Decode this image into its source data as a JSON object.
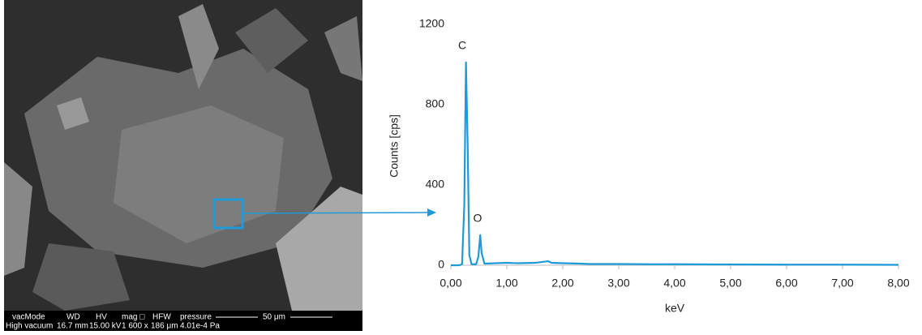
{
  "sem_image": {
    "info_header": [
      "vacMode",
      "WD",
      "HV",
      "mag □",
      "HFW",
      "pressure",
      "50 μm"
    ],
    "info_values": [
      "High vacuum",
      "16.7 mm",
      "15.00 kV",
      "1 600 x",
      "186 μm",
      "4.01e-4 Pa"
    ]
  },
  "chart_data": {
    "type": "line",
    "x": [
      0.0,
      0.15,
      0.2,
      0.24,
      0.27,
      0.3,
      0.33,
      0.37,
      0.45,
      0.49,
      0.525,
      0.55,
      0.6,
      0.8,
      1.0,
      1.2,
      1.5,
      1.74,
      1.8,
      2.0,
      2.3,
      2.5,
      3.0,
      3.5,
      4.0,
      5.0,
      6.0,
      7.0,
      8.0
    ],
    "values": [
      0,
      0,
      5,
      300,
      1010,
      600,
      50,
      5,
      5,
      40,
      150,
      60,
      8,
      10,
      12,
      10,
      12,
      20,
      12,
      10,
      8,
      6,
      6,
      5,
      5,
      4,
      3,
      3,
      2
    ],
    "color": "#1e9ad6",
    "xlabel": "keV",
    "ylabel": "Counts [cps]",
    "xlim": [
      0,
      8
    ],
    "ylim": [
      0,
      1200
    ],
    "xticks": [
      {
        "value": 0,
        "label": "0,00"
      },
      {
        "value": 1,
        "label": "1,00"
      },
      {
        "value": 2,
        "label": "2,00"
      },
      {
        "value": 3,
        "label": "3,00"
      },
      {
        "value": 4,
        "label": "4,00"
      },
      {
        "value": 5,
        "label": "5,00"
      },
      {
        "value": 6,
        "label": "6,00"
      },
      {
        "value": 7,
        "label": "7,00"
      },
      {
        "value": 8,
        "label": "8,00"
      }
    ],
    "yticks": [
      0,
      400,
      800,
      1200
    ],
    "annotations": [
      "C",
      "O"
    ]
  }
}
